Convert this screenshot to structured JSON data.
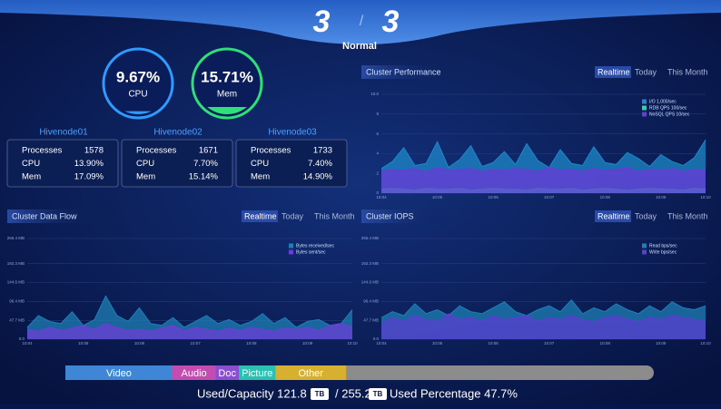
{
  "header": {
    "left": "3",
    "sep": "/",
    "right": "3",
    "status": "Normal"
  },
  "gauges": [
    {
      "value": 9.67,
      "value_label": "9.67%",
      "label": "CPU",
      "color": "#2f9bff"
    },
    {
      "value": 15.71,
      "value_label": "15.71%",
      "label": "Mem",
      "color": "#2fe07a"
    }
  ],
  "nodes": [
    {
      "name": "Hivenode01",
      "rows": [
        [
          "Processes",
          "1578"
        ],
        [
          "CPU",
          "13.90%"
        ],
        [
          "Mem",
          "17.09%"
        ]
      ]
    },
    {
      "name": "Hivenode02",
      "rows": [
        [
          "Processes",
          "1671"
        ],
        [
          "CPU",
          "7.70%"
        ],
        [
          "Mem",
          "15.14%"
        ]
      ]
    },
    {
      "name": "Hivenode03",
      "rows": [
        [
          "Processes",
          "1733"
        ],
        [
          "CPU",
          "7.40%"
        ],
        [
          "Mem",
          "14.90%"
        ]
      ]
    }
  ],
  "tabs": [
    "Realtime",
    "Today",
    "This Month"
  ],
  "chart_data": [
    {
      "type": "area",
      "title": "Cluster Performance",
      "x": [
        "10:04",
        null,
        null,
        null,
        null,
        "10:05",
        null,
        null,
        null,
        null,
        "10:06",
        null,
        null,
        null,
        null,
        "10:07",
        null,
        null,
        null,
        null,
        "10:08",
        null,
        null,
        null,
        null,
        "10:09",
        null,
        null,
        null,
        "10:10"
      ],
      "series": [
        {
          "name": "I/O 1,000/sec",
          "color": "#1e88c8",
          "values": [
            2.5,
            3.2,
            4.6,
            2.8,
            3.0,
            5.2,
            2.6,
            3.4,
            4.8,
            2.7,
            3.1,
            4.2,
            2.9,
            5.0,
            3.3,
            2.6,
            4.4,
            3.0,
            2.8,
            4.7,
            3.1,
            2.9,
            4.1,
            3.5,
            2.7,
            3.9,
            3.2,
            2.8,
            3.6,
            5.4
          ]
        },
        {
          "name": "RDB QPS 100/sec",
          "color": "#2bd4a0",
          "values": [
            0.4,
            0.5,
            0.4,
            0.3,
            0.5,
            0.4,
            0.4,
            0.5,
            0.3,
            0.4,
            0.5,
            0.4,
            0.4,
            0.3,
            0.5,
            0.4,
            0.4,
            0.5,
            0.3,
            0.4,
            0.5,
            0.4,
            0.3,
            0.4,
            0.5,
            0.4,
            0.4,
            0.3,
            0.5,
            0.4
          ]
        },
        {
          "name": "NoSQL QPS 10/sec",
          "color": "#6a3bd8",
          "values": [
            2.2,
            2.4,
            2.3,
            2.5,
            2.2,
            2.6,
            2.3,
            2.4,
            2.5,
            2.2,
            2.4,
            2.3,
            2.5,
            2.4,
            2.2,
            2.6,
            2.3,
            2.4,
            2.2,
            2.5,
            2.3,
            2.4,
            2.6,
            2.2,
            2.4,
            2.3,
            2.5,
            2.2,
            2.4,
            2.3
          ]
        }
      ],
      "ylim": [
        0,
        10
      ],
      "yticks": [
        0,
        2,
        4,
        6,
        8,
        {
          "value": 10,
          "label": "10.0"
        }
      ],
      "grid": true
    },
    {
      "type": "area",
      "title": "Cluster Data Flow",
      "x": [
        "10:04",
        null,
        null,
        null,
        null,
        "10:05",
        null,
        null,
        null,
        null,
        "10:06",
        null,
        null,
        null,
        null,
        "10:07",
        null,
        null,
        null,
        null,
        "10:08",
        null,
        null,
        null,
        null,
        "10:09",
        null,
        null,
        null,
        "10:10"
      ],
      "series": [
        {
          "name": "Bytes received/sec",
          "color": "#1f7fb5",
          "values": [
            30,
            60,
            45,
            40,
            70,
            35,
            50,
            110,
            60,
            45,
            80,
            40,
            35,
            55,
            30,
            45,
            60,
            40,
            50,
            35,
            45,
            65,
            40,
            55,
            30,
            45,
            50,
            35,
            40,
            75
          ]
        },
        {
          "name": "Bytes sent/sec",
          "color": "#6b3fd6",
          "values": [
            25,
            20,
            30,
            22,
            28,
            35,
            25,
            40,
            30,
            22,
            25,
            20,
            28,
            35,
            22,
            30,
            25,
            20,
            28,
            22,
            30,
            25,
            20,
            28,
            25,
            30,
            22,
            35,
            40,
            30
          ]
        }
      ],
      "ylim": [
        0,
        256.4
      ],
      "yticks": [
        {
          "value": 0,
          "label": "0.0"
        },
        {
          "value": 47.7,
          "label": "47.7 MB"
        },
        {
          "value": 96.4,
          "label": "96.4 MB"
        },
        {
          "value": 144.6,
          "label": "144.6 MB"
        },
        {
          "value": 192.3,
          "label": "192.3 MB"
        },
        {
          "value": 256.4,
          "label": "256.4 MB"
        }
      ],
      "grid": true
    },
    {
      "type": "area",
      "title": "Cluster IOPS",
      "x": [
        "10:04",
        null,
        null,
        null,
        null,
        "10:05",
        null,
        null,
        null,
        null,
        "10:06",
        null,
        null,
        null,
        null,
        "10:07",
        null,
        null,
        null,
        null,
        "10:08",
        null,
        null,
        null,
        null,
        "10:09",
        null,
        null,
        null,
        "10:10"
      ],
      "series": [
        {
          "name": "Read bps/sec",
          "color": "#1f7fb5",
          "values": [
            55,
            70,
            60,
            90,
            65,
            75,
            60,
            85,
            70,
            65,
            80,
            95,
            70,
            60,
            75,
            85,
            70,
            100,
            65,
            80,
            70,
            90,
            75,
            65,
            85,
            70,
            95,
            80,
            75,
            85
          ]
        },
        {
          "name": "Write bps/sec",
          "color": "#5a3fd0",
          "values": [
            40,
            55,
            45,
            60,
            50,
            45,
            65,
            50,
            55,
            45,
            60,
            50,
            55,
            60,
            45,
            55,
            50,
            60,
            50,
            45,
            55,
            60,
            50,
            45,
            55,
            50,
            60,
            55,
            50,
            45
          ]
        }
      ],
      "ylim": [
        0,
        256.4
      ],
      "yticks": [
        {
          "value": 0,
          "label": "0.0"
        },
        {
          "value": 47.7,
          "label": "47.7 MB"
        },
        {
          "value": 96.4,
          "label": "96.4 MB"
        },
        {
          "value": 144.6,
          "label": "144.6 MB"
        },
        {
          "value": 192.3,
          "label": "192.3 MB"
        },
        {
          "value": 256.4,
          "label": "256.4 MB"
        }
      ],
      "grid": true
    }
  ],
  "storage": {
    "xlim": [
      0,
      100
    ],
    "segments": [
      {
        "name": "Video",
        "value": 18.2,
        "color": "#3f86d6"
      },
      {
        "name": "Audio",
        "value": 7.3,
        "color": "#c44bb0"
      },
      {
        "name": "Doc",
        "value": 4,
        "color": "#8a4fd0"
      },
      {
        "name": "Picture",
        "value": 6.2,
        "color": "#2cc0b0"
      },
      {
        "name": "Other",
        "value": 12,
        "color": "#d8b030"
      }
    ],
    "summary": [
      "Used/Capacity 121.8",
      "TB",
      "/ 255.2",
      "TB",
      "Used Percentage 47.7%"
    ]
  }
}
